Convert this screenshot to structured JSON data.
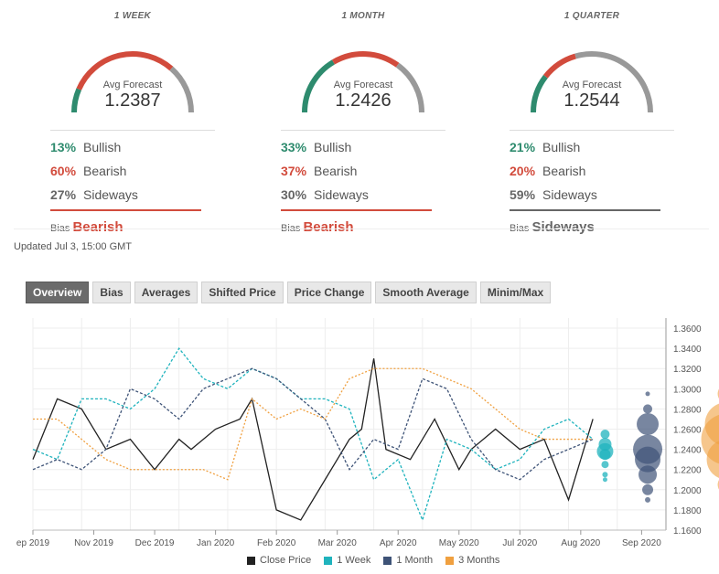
{
  "forecasts": [
    {
      "period": "1 WEEK",
      "avg_label": "Avg Forecast",
      "avg_value": "1.2387",
      "bullish_pct": "13%",
      "bearish_pct": "60%",
      "sideways_pct": "27%",
      "bias_label": "Bias",
      "bias_value": "Bearish",
      "bias_color": "#d24b3c",
      "gauge": {
        "green": 0.13,
        "red": 0.6,
        "gray": 0.27
      }
    },
    {
      "period": "1 MONTH",
      "avg_label": "Avg Forecast",
      "avg_value": "1.2426",
      "bullish_pct": "33%",
      "bearish_pct": "37%",
      "sideways_pct": "30%",
      "bias_label": "Bias",
      "bias_value": "Bearish",
      "bias_color": "#d24b3c",
      "gauge": {
        "green": 0.33,
        "red": 0.37,
        "gray": 0.3
      }
    },
    {
      "period": "1 QUARTER",
      "avg_label": "Avg Forecast",
      "avg_value": "1.2544",
      "bullish_pct": "21%",
      "bearish_pct": "20%",
      "sideways_pct": "59%",
      "bias_label": "Bias",
      "bias_value": "Sideways",
      "bias_color": "#666666",
      "gauge": {
        "green": 0.21,
        "red": 0.2,
        "gray": 0.59
      }
    }
  ],
  "labels": {
    "bullish": "Bullish",
    "bearish": "Bearish",
    "sideways": "Sideways"
  },
  "updated": "Updated Jul 3, 15:00 GMT",
  "tabs": [
    "Overview",
    "Bias",
    "Averages",
    "Shifted Price",
    "Price Change",
    "Smooth Average",
    "Minim/Max"
  ],
  "colors": {
    "green": "#2e8b6e",
    "red": "#d24b3c",
    "gray": "#999999",
    "close": "#222222",
    "week": "#1fb3bd",
    "month": "#3e5377",
    "quarter": "#f0a040"
  },
  "chart_data": {
    "type": "line",
    "x_ticks": [
      "ep 2019",
      "Nov 2019",
      "Dec 2019",
      "Jan 2020",
      "Feb 2020",
      "Mar 2020",
      "Apr 2020",
      "May 2020",
      "Jul 2020",
      "Aug 2020",
      "Sep 2020"
    ],
    "ylim": [
      1.16,
      1.37
    ],
    "y_ticks": [
      "1.3600",
      "1.3400",
      "1.3200",
      "1.3000",
      "1.2800",
      "1.2600",
      "1.2400",
      "1.2200",
      "1.2000",
      "1.1800",
      "1.1600"
    ],
    "legend": [
      "Close Price",
      "1 Week",
      "1 Month",
      "3 Months"
    ],
    "series": [
      {
        "name": "Close Price",
        "style": "solid",
        "x": [
          0,
          2,
          4,
          6,
          8,
          10,
          12,
          13,
          15,
          17,
          18,
          20,
          22,
          24,
          26,
          27,
          28,
          29,
          31,
          33,
          35,
          36,
          38,
          40,
          42,
          44,
          46
        ],
        "values": [
          1.23,
          1.29,
          1.28,
          1.24,
          1.25,
          1.22,
          1.25,
          1.24,
          1.26,
          1.27,
          1.29,
          1.18,
          1.17,
          1.21,
          1.25,
          1.26,
          1.33,
          1.24,
          1.23,
          1.27,
          1.22,
          1.24,
          1.26,
          1.24,
          1.25,
          1.19,
          1.27
        ]
      },
      {
        "name": "1 Week",
        "style": "dashed",
        "x": [
          0,
          2,
          4,
          6,
          8,
          10,
          12,
          14,
          16,
          18,
          20,
          22,
          24,
          26,
          28,
          30,
          32,
          34,
          36,
          38,
          40,
          42,
          44,
          46
        ],
        "values": [
          1.24,
          1.23,
          1.29,
          1.29,
          1.28,
          1.3,
          1.34,
          1.31,
          1.3,
          1.32,
          1.31,
          1.29,
          1.29,
          1.28,
          1.21,
          1.23,
          1.17,
          1.25,
          1.24,
          1.22,
          1.23,
          1.26,
          1.27,
          1.25
        ]
      },
      {
        "name": "1 Month",
        "style": "dashed",
        "x": [
          0,
          2,
          4,
          6,
          8,
          10,
          12,
          14,
          16,
          18,
          20,
          22,
          24,
          26,
          28,
          30,
          32,
          34,
          36,
          38,
          40,
          42,
          44,
          46
        ],
        "values": [
          1.22,
          1.23,
          1.22,
          1.24,
          1.3,
          1.29,
          1.27,
          1.3,
          1.31,
          1.32,
          1.31,
          1.29,
          1.27,
          1.22,
          1.25,
          1.24,
          1.31,
          1.3,
          1.25,
          1.22,
          1.21,
          1.23,
          1.24,
          1.25
        ]
      },
      {
        "name": "3 Months",
        "style": "dotted",
        "x": [
          0,
          2,
          4,
          6,
          8,
          10,
          12,
          14,
          16,
          18,
          20,
          22,
          24,
          26,
          28,
          30,
          32,
          34,
          36,
          38,
          40,
          42,
          44,
          46
        ],
        "values": [
          1.27,
          1.27,
          1.25,
          1.23,
          1.22,
          1.22,
          1.22,
          1.22,
          1.21,
          1.29,
          1.27,
          1.28,
          1.27,
          1.31,
          1.32,
          1.32,
          1.32,
          1.31,
          1.3,
          1.28,
          1.26,
          1.25,
          1.25,
          1.25
        ]
      }
    ]
  }
}
